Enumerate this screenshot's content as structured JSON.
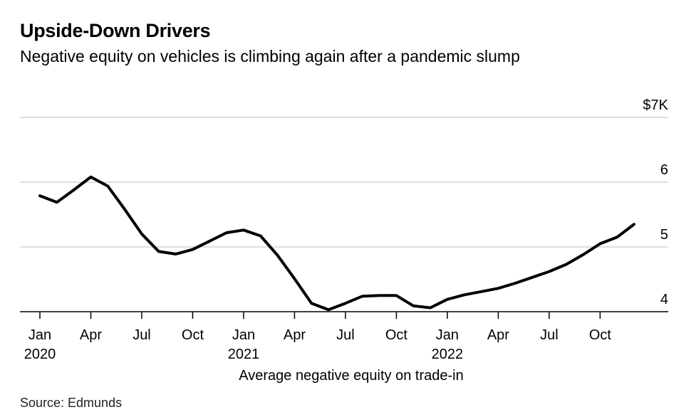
{
  "title": "Upside-Down Drivers",
  "subtitle": "Negative equity on vehicles is climbing again after a pandemic slump",
  "source": "Source: Edmunds",
  "chart_data": {
    "type": "line",
    "title": "Upside-Down Drivers",
    "subtitle": "Negative equity on vehicles is climbing again after a pandemic slump",
    "xlabel": "Average negative equity on trade-in",
    "ylabel": "",
    "ylim": [
      4,
      7
    ],
    "y_ticks": [
      {
        "value": 7,
        "label": "$7K"
      },
      {
        "value": 6,
        "label": "6"
      },
      {
        "value": 5,
        "label": "5"
      },
      {
        "value": 4,
        "label": "4"
      }
    ],
    "x_ticks": [
      {
        "month": "2020-01",
        "label": "Jan",
        "year": "2020"
      },
      {
        "month": "2020-04",
        "label": "Apr",
        "year": ""
      },
      {
        "month": "2020-07",
        "label": "Jul",
        "year": ""
      },
      {
        "month": "2020-10",
        "label": "Oct",
        "year": ""
      },
      {
        "month": "2021-01",
        "label": "Jan",
        "year": "2021"
      },
      {
        "month": "2021-04",
        "label": "Apr",
        "year": ""
      },
      {
        "month": "2021-07",
        "label": "Jul",
        "year": ""
      },
      {
        "month": "2021-10",
        "label": "Oct",
        "year": ""
      },
      {
        "month": "2022-01",
        "label": "Jan",
        "year": "2022"
      },
      {
        "month": "2022-04",
        "label": "Apr",
        "year": ""
      },
      {
        "month": "2022-07",
        "label": "Jul",
        "year": ""
      },
      {
        "month": "2022-10",
        "label": "Oct",
        "year": ""
      }
    ],
    "grid": "horizontal",
    "line_color": "#000000",
    "series": [
      {
        "x": [
          "2020-01",
          "2020-02",
          "2020-03",
          "2020-04",
          "2020-05",
          "2020-06",
          "2020-07",
          "2020-08",
          "2020-09",
          "2020-10",
          "2020-11",
          "2020-12",
          "2021-01",
          "2021-02",
          "2021-03",
          "2021-04",
          "2021-05",
          "2021-06",
          "2021-07",
          "2021-08",
          "2021-09",
          "2021-10",
          "2021-11",
          "2021-12",
          "2022-01",
          "2022-02",
          "2022-03",
          "2022-04",
          "2022-05",
          "2022-06",
          "2022-07",
          "2022-08",
          "2022-09",
          "2022-10",
          "2022-11",
          "2022-12"
        ],
        "values": [
          5.79,
          5.69,
          5.88,
          6.08,
          5.94,
          5.58,
          5.2,
          4.93,
          4.89,
          4.96,
          5.09,
          5.22,
          5.26,
          5.17,
          4.87,
          4.51,
          4.13,
          4.03,
          4.13,
          4.24,
          4.25,
          4.25,
          4.09,
          4.06,
          4.19,
          4.26,
          4.31,
          4.36,
          4.44,
          4.53,
          4.62,
          4.73,
          4.88,
          5.05,
          5.15,
          5.35
        ]
      }
    ]
  }
}
